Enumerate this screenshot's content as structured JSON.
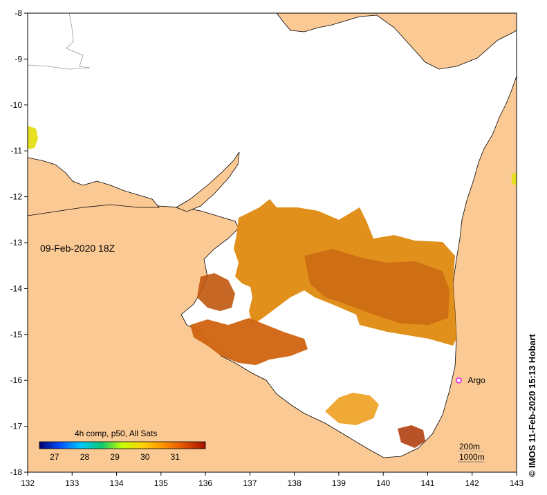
{
  "map": {
    "title": "09-Feb-2020 18Z",
    "credit": "© IMOS 11-Feb-2020 15:13 Hobart",
    "colors": {
      "land": "#fbc994",
      "water": "#ffffff",
      "frame": "#000000",
      "argo": "#e040e0"
    },
    "x_axis": {
      "min": 132,
      "max": 143,
      "ticks": [
        "132",
        "133",
        "134",
        "135",
        "136",
        "137",
        "138",
        "139",
        "140",
        "141",
        "142",
        "143"
      ]
    },
    "y_axis": {
      "min": -18,
      "max": -8,
      "ticks": [
        "-8",
        "-9",
        "-10",
        "-11",
        "-12",
        "-13",
        "-14",
        "-15",
        "-16",
        "-17",
        "-18"
      ]
    },
    "argo_label": "Argo",
    "argo_position": {
      "lon": 141.7,
      "lat": -16.0
    },
    "contours": {
      "shallow": "200m",
      "deep": "1000m"
    },
    "colorbar": {
      "title": "4h comp, p50, All Sats",
      "min": 26.5,
      "max": 32,
      "tick_values": [
        27,
        28,
        29,
        30,
        31
      ],
      "tick_labels": [
        "27",
        "28",
        "29",
        "30",
        "31"
      ],
      "stops": [
        "#000070",
        "#0050ff",
        "#00c8ff",
        "#10c870",
        "#c8ff00",
        "#ffd000",
        "#ff9000",
        "#e05000",
        "#a01000"
      ]
    }
  }
}
